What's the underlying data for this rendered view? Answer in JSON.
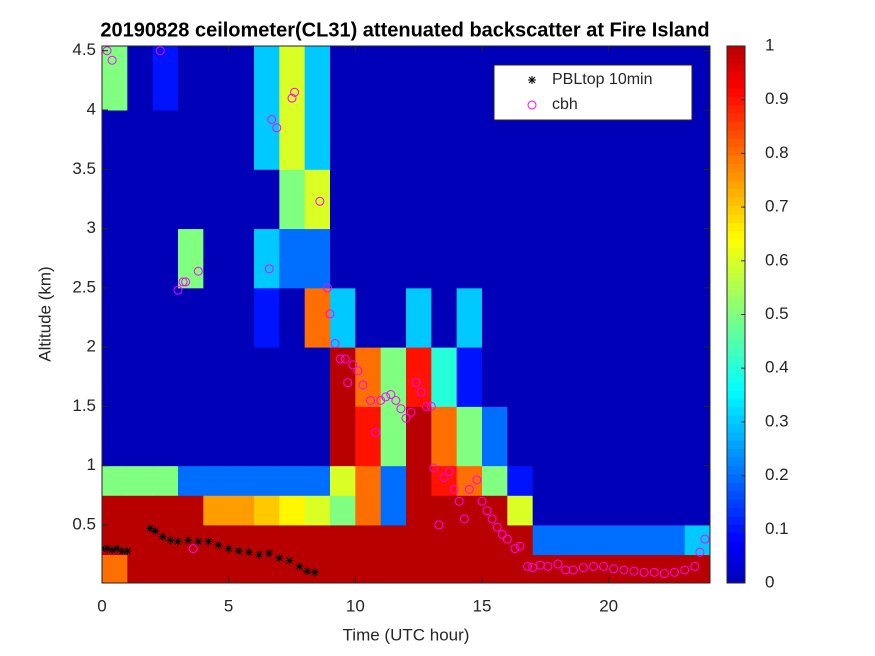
{
  "chart_data": {
    "type": "heatmap",
    "title": "20190828 ceilometer(CL31) attenuated backscatter at Fire Island",
    "xlabel": "Time (UTC hour)",
    "ylabel": "Altitude (km)",
    "xlim": [
      0,
      24
    ],
    "ylim": [
      0.01,
      4.54
    ],
    "xticks": [
      0,
      5,
      10,
      15,
      20
    ],
    "yticks": [
      0.5,
      1,
      1.5,
      2,
      2.5,
      3,
      3.5,
      4,
      4.5
    ],
    "colormap": "jet",
    "clim": [
      0,
      1
    ],
    "cticks": [
      0,
      0.1,
      0.2,
      0.3,
      0.4,
      0.5,
      0.6,
      0.7,
      0.8,
      0.9,
      1
    ],
    "x_edges": [
      0,
      1,
      2,
      3,
      4,
      5,
      6,
      7,
      8,
      9,
      10,
      11,
      12,
      13,
      14,
      15,
      16,
      17,
      18,
      19,
      20,
      21,
      22,
      23,
      24
    ],
    "y_edges": [
      0.01,
      0.25,
      0.5,
      0.75,
      1.0,
      1.5,
      2.0,
      2.5,
      3.0,
      3.5,
      4.0,
      4.54
    ],
    "z": [
      [
        0.8,
        1,
        1,
        1,
        1,
        1,
        1,
        1,
        1,
        1,
        1,
        1,
        1,
        1,
        1,
        1,
        1,
        1,
        1,
        1,
        1,
        1,
        1,
        1
      ],
      [
        1,
        1,
        1,
        1,
        1,
        1,
        1,
        1,
        1,
        1,
        1,
        1,
        1,
        1,
        1,
        1,
        1,
        0.2,
        0.2,
        0.2,
        0.2,
        0.2,
        0.2,
        0.3
      ],
      [
        1,
        1,
        1,
        1,
        0.75,
        0.75,
        0.7,
        0.65,
        0.6,
        0.5,
        0.8,
        0.2,
        1,
        1,
        1,
        1,
        0.6,
        0,
        0,
        0,
        0,
        0,
        0,
        0
      ],
      [
        0.5,
        0.5,
        0.5,
        0.2,
        0.2,
        0.2,
        0.2,
        0.2,
        0.2,
        0.6,
        0.8,
        0.2,
        1,
        0.9,
        0.8,
        0.5,
        0.1,
        0,
        0,
        0,
        0,
        0,
        0,
        0
      ],
      [
        0,
        0,
        0,
        0,
        0,
        0,
        0,
        0,
        0,
        1,
        0.9,
        0.5,
        1,
        0.8,
        0.5,
        0.2,
        0,
        0,
        0,
        0,
        0,
        0,
        0,
        0
      ],
      [
        0,
        0,
        0,
        0,
        0,
        0,
        0,
        0,
        0,
        1,
        0.8,
        0.5,
        0.9,
        0.4,
        0.1,
        0,
        0,
        0,
        0,
        0,
        0,
        0,
        0,
        0
      ],
      [
        0,
        0,
        0,
        0,
        0,
        0,
        0.1,
        0,
        0.8,
        0.3,
        0,
        0,
        0.3,
        0,
        0.3,
        0,
        0,
        0,
        0,
        0,
        0,
        0,
        0,
        0
      ],
      [
        0,
        0,
        0,
        0.5,
        0,
        0,
        0.3,
        0.2,
        0.2,
        0,
        0,
        0,
        0,
        0,
        0,
        0,
        0,
        0,
        0,
        0,
        0,
        0,
        0,
        0
      ],
      [
        0,
        0,
        0,
        0,
        0,
        0,
        0,
        0.5,
        0.6,
        0,
        0,
        0,
        0,
        0,
        0,
        0,
        0,
        0,
        0,
        0,
        0,
        0,
        0,
        0
      ],
      [
        0,
        0,
        0,
        0,
        0,
        0,
        0.3,
        0.6,
        0.3,
        0,
        0,
        0,
        0,
        0,
        0,
        0,
        0,
        0,
        0,
        0,
        0,
        0,
        0,
        0
      ],
      [
        0.5,
        0,
        0.1,
        0,
        0,
        0,
        0.3,
        0.6,
        0.3,
        0,
        0,
        0,
        0,
        0,
        0,
        0,
        0,
        0,
        0,
        0,
        0,
        0,
        0,
        0
      ]
    ],
    "legend": "northeast",
    "series": [
      {
        "name": "PBLtop 10min",
        "color": "#000000",
        "marker": "asterisk",
        "x": [
          0,
          0.2,
          0.4,
          0.6,
          0.8,
          1,
          1.9,
          2.1,
          2.4,
          2.7,
          3,
          3.4,
          3.8,
          4.2,
          4.6,
          5,
          5.4,
          5.8,
          6.2,
          6.6,
          7,
          7.4,
          7.8,
          8.1,
          8.4
        ],
        "y": [
          0.3,
          0.3,
          0.29,
          0.3,
          0.28,
          0.28,
          0.47,
          0.45,
          0.4,
          0.37,
          0.36,
          0.37,
          0.36,
          0.36,
          0.33,
          0.3,
          0.28,
          0.27,
          0.25,
          0.26,
          0.22,
          0.2,
          0.15,
          0.11,
          0.1
        ]
      },
      {
        "name": "cbh",
        "color": "#ff00ff",
        "marker": "circle",
        "x": [
          0.2,
          0.4,
          2.3,
          3,
          3.2,
          3.3,
          3.6,
          3.8,
          6.6,
          6.7,
          6.9,
          7.5,
          7.6,
          8.6,
          8.9,
          9,
          9.2,
          9.4,
          9.6,
          9.7,
          9.9,
          10.1,
          10.3,
          10.6,
          10.8,
          11,
          11.2,
          11.4,
          11.6,
          11.8,
          12,
          12.2,
          12.4,
          12.6,
          12.8,
          13,
          13.1,
          13.3,
          13.5,
          13.7,
          13.9,
          14.1,
          14.3,
          14.5,
          14.8,
          15,
          15.2,
          15.4,
          15.6,
          15.8,
          16,
          16.3,
          16.5,
          16.8,
          17,
          17.3,
          17.6,
          18,
          18.3,
          18.6,
          19,
          19.4,
          19.8,
          20.2,
          20.6,
          21,
          21.4,
          21.8,
          22.2,
          22.6,
          23,
          23.4,
          23.6,
          23.8
        ],
        "y": [
          4.5,
          4.42,
          4.5,
          2.48,
          2.55,
          2.55,
          0.3,
          2.64,
          2.66,
          3.92,
          3.85,
          4.1,
          4.15,
          3.23,
          2.5,
          2.28,
          2.03,
          1.9,
          1.9,
          1.7,
          1.85,
          1.8,
          1.68,
          1.55,
          1.28,
          1.55,
          1.58,
          1.6,
          1.55,
          1.48,
          1.4,
          1.45,
          1.7,
          1.62,
          1.5,
          1.5,
          0.98,
          0.5,
          0.9,
          0.95,
          0.8,
          0.7,
          0.55,
          0.8,
          0.88,
          0.7,
          0.62,
          0.55,
          0.48,
          0.42,
          0.38,
          0.3,
          0.32,
          0.15,
          0.14,
          0.16,
          0.15,
          0.17,
          0.12,
          0.12,
          0.14,
          0.15,
          0.15,
          0.13,
          0.12,
          0.11,
          0.1,
          0.1,
          0.09,
          0.1,
          0.12,
          0.15,
          0.27,
          0.38
        ]
      }
    ]
  }
}
